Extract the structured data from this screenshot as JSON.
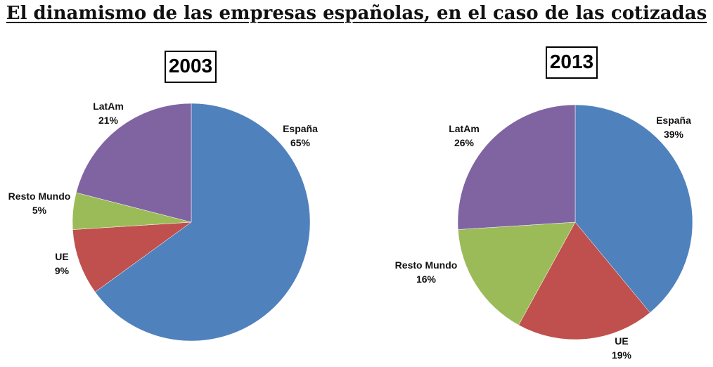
{
  "title": "El dinamismo de las empresas españolas, en el caso de las cotizadas",
  "chart_data": [
    {
      "type": "pie",
      "title": "2003",
      "categories": [
        "España",
        "UE",
        "Resto Mundo",
        "LatAm"
      ],
      "values": [
        65,
        9,
        5,
        21
      ],
      "value_labels": [
        "65%",
        "9%",
        "5%",
        "21%"
      ],
      "colors": [
        "#4F81BD",
        "#C0504D",
        "#9BBB59",
        "#8064A2"
      ]
    },
    {
      "type": "pie",
      "title": "2013",
      "categories": [
        "España",
        "UE",
        "Resto Mundo",
        "LatAm"
      ],
      "values": [
        39,
        19,
        16,
        26
      ],
      "value_labels": [
        "39%",
        "19%",
        "16%",
        "26%"
      ],
      "colors": [
        "#4F81BD",
        "#C0504D",
        "#9BBB59",
        "#8064A2"
      ]
    }
  ]
}
